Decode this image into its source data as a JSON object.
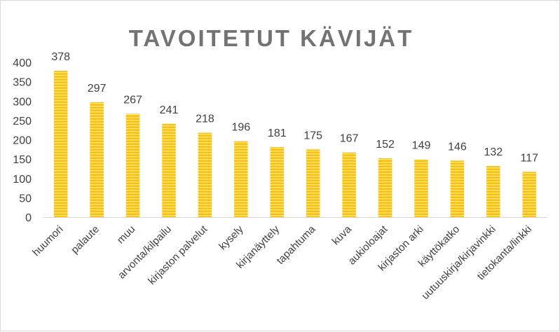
{
  "chart_data": {
    "type": "bar",
    "title": "TAVOITETUT KÄVIJÄT",
    "categories": [
      "huumori",
      "palaute",
      "muu",
      "arvonta/kilpailu",
      "kirjaston palvelut",
      "kysely",
      "kirjanäyttely",
      "tapahtuma",
      "kuva",
      "aukioloajat",
      "kirjaston arki",
      "käyttökatko",
      "uutuuskirja/kirjavinkki",
      "tietokanta/linkki"
    ],
    "values": [
      378,
      297,
      267,
      241,
      218,
      196,
      181,
      175,
      167,
      152,
      149,
      146,
      132,
      117
    ],
    "ylim": [
      0,
      400
    ],
    "yticks": [
      0,
      50,
      100,
      150,
      200,
      250,
      300,
      350,
      400
    ],
    "xlabel": "",
    "ylabel": "",
    "grid": false,
    "legend": "none",
    "data_labels": true,
    "bar_color": "#FFC000",
    "bar_stripe_color": "#FFE699"
  }
}
